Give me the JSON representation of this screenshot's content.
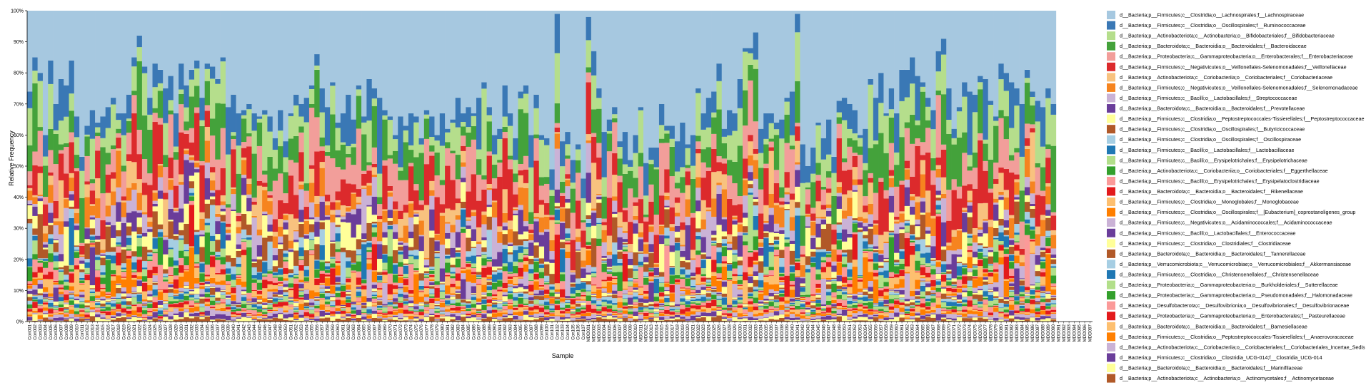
{
  "chart_data": {
    "type": "bar",
    "stacked": true,
    "xlabel": "Sample",
    "ylabel": "Relative Frequency",
    "ylim": [
      0,
      100
    ],
    "y_ticks": [
      "0%",
      "10%",
      "20%",
      "30%",
      "40%",
      "50%",
      "60%",
      "70%",
      "80%",
      "90%",
      "100%"
    ],
    "legend_position": "right",
    "categories": [
      "Con001",
      "Con002",
      "Con003",
      "Con004",
      "Con005",
      "Con006",
      "Con007",
      "Con008",
      "Con009",
      "Con010",
      "Con011",
      "Con012",
      "Con013",
      "Con014",
      "Con015",
      "Con016",
      "Con017",
      "Con018",
      "Con019",
      "Con020",
      "Con021",
      "Con022",
      "Con023",
      "Con024",
      "Con025",
      "Con026",
      "Con027",
      "Con028",
      "Con029",
      "Con030",
      "Con031",
      "Con032",
      "Con033",
      "Con034",
      "Con035",
      "Con036",
      "Con037",
      "Con038",
      "Con039",
      "Con040",
      "Con041",
      "Con042",
      "Con043",
      "Con044",
      "Con045",
      "Con046",
      "Con047",
      "Con048",
      "Con049",
      "Con050",
      "Con051",
      "Con052",
      "Con053",
      "Con054",
      "Con055",
      "Con056",
      "Con057",
      "Con058",
      "Con059",
      "Con060",
      "Con061",
      "Con062",
      "Con063",
      "Con064",
      "Con065",
      "Con066",
      "Con067",
      "Con068",
      "Con069",
      "Con070",
      "Con071",
      "Con072",
      "Con073",
      "Con074",
      "Con075",
      "Con076",
      "Con077",
      "Con078",
      "Con079",
      "Con080",
      "Con081",
      "Con082",
      "Con083",
      "Con084",
      "Con085",
      "Con086",
      "Con087",
      "Con088",
      "Con089",
      "Con090",
      "Con091",
      "Con092",
      "Con093",
      "Con094",
      "Con095",
      "Con096",
      "Con097",
      "Con098",
      "Con099",
      "Con100",
      "Con101",
      "Con102",
      "Con103",
      "Con104",
      "Con105",
      "Con106",
      "Con107",
      "MDD001",
      "MDD002",
      "MDD003",
      "MDD004",
      "MDD005",
      "MDD006",
      "MDD007",
      "MDD008",
      "MDD009",
      "MDD010",
      "MDD011",
      "MDD012",
      "MDD013",
      "MDD014",
      "MDD015",
      "MDD016",
      "MDD017",
      "MDD018",
      "MDD019",
      "MDD020",
      "MDD021",
      "MDD022",
      "MDD023",
      "MDD024",
      "MDD025",
      "MDD026",
      "MDD027",
      "MDD028",
      "MDD029",
      "MDD030",
      "MDD031",
      "MDD032",
      "MDD033",
      "MDD034",
      "MDD035",
      "MDD036",
      "MDD037",
      "MDD038",
      "MDD039",
      "MDD040",
      "MDD041",
      "MDD042",
      "MDD043",
      "MDD044",
      "MDD045",
      "MDD046",
      "MDD047",
      "MDD048",
      "MDD049",
      "MDD050",
      "MDD051",
      "MDD052",
      "MDD053",
      "MDD054",
      "MDD055",
      "MDD056",
      "MDD057",
      "MDD058",
      "MDD059",
      "MDD060",
      "MDD061",
      "MDD062",
      "MDD063",
      "MDD064",
      "MDD065",
      "MDD066",
      "MDD067",
      "MDD068",
      "MDD069",
      "MDD070",
      "MDD071",
      "MDD072",
      "MDD073",
      "MDD074",
      "MDD075",
      "MDD076",
      "MDD077",
      "MDD078",
      "MDD079",
      "MDD080",
      "MDD081",
      "MDD082",
      "MDD083",
      "MDD084",
      "MDD085",
      "MDD086",
      "MDD087",
      "MDD088",
      "MDD089",
      "MDD090",
      "MDD091",
      "MDD092",
      "MDD093",
      "MDD094",
      "MDD095",
      "MDD096",
      "MDD097"
    ],
    "top_taxon_percent": [
      26,
      15,
      20,
      40,
      16,
      30,
      22,
      24,
      16,
      34,
      47,
      37,
      32,
      36,
      34,
      31,
      28,
      33,
      33,
      27,
      15,
      8,
      18,
      28,
      17,
      19,
      25,
      21,
      33,
      17,
      24,
      19,
      16,
      28,
      17,
      18,
      22,
      15,
      31,
      27,
      33,
      32,
      30,
      33,
      34,
      32,
      34,
      41,
      32,
      42,
      33,
      27,
      30,
      28,
      24,
      14,
      25,
      31,
      23,
      36,
      33,
      27,
      35,
      24,
      34,
      22,
      25,
      28,
      32,
      34,
      40,
      34,
      37,
      33,
      34,
      41,
      32,
      34,
      40,
      33,
      38,
      35,
      28,
      33,
      31,
      33,
      28,
      23,
      31,
      40,
      38,
      24,
      33,
      41,
      26,
      24,
      40,
      27,
      40,
      41,
      51,
      1,
      42,
      39,
      48,
      43,
      54,
      2,
      13,
      25,
      39,
      35,
      31,
      42,
      39,
      48,
      40,
      31,
      49,
      44,
      44,
      30,
      37,
      37,
      42,
      36,
      43,
      40,
      25,
      33,
      28,
      26,
      17,
      38,
      32,
      33,
      22,
      12,
      12,
      7,
      38,
      33,
      33,
      36,
      35,
      28,
      26,
      1,
      43,
      50,
      44,
      36,
      41,
      35,
      47,
      29,
      28,
      30,
      32,
      40,
      38,
      22,
      28,
      20,
      33,
      25,
      33,
      19,
      19,
      15,
      21,
      23,
      28,
      32,
      13,
      9,
      25,
      38,
      31,
      23,
      26,
      27,
      21,
      22,
      29,
      34,
      17,
      20,
      23,
      25,
      30,
      19,
      26,
      29,
      31,
      25,
      30
    ],
    "series": [
      {
        "name": "d__Bacteria;p__Firmicutes;c__Clostridia;o__Lachnospirales;f__Lachnospiraceae",
        "color": "#a6c8e0"
      },
      {
        "name": "d__Bacteria;p__Firmicutes;c__Clostridia;o__Oscillospirales;f__Ruminococcaceae",
        "color": "#3a78b5"
      },
      {
        "name": "d__Bacteria;p__Actinobacteriota;c__Actinobacteria;o__Bifidobacteriales;f__Bifidobacteriaceae",
        "color": "#b5de8c"
      },
      {
        "name": "d__Bacteria;p__Bacteroidota;c__Bacteroidia;o__Bacteroidales;f__Bacteroidaceae",
        "color": "#44a23b"
      },
      {
        "name": "d__Bacteria;p__Proteobacteria;c__Gammaproteobacteria;o__Enterobacterales;f__Enterobacteriaceae",
        "color": "#f29e9a"
      },
      {
        "name": "d__Bacteria;p__Firmicutes;c__Negativicutes;o__Veillonellales-Selenomonadales;f__Veillonellaceae",
        "color": "#dc2a2c"
      },
      {
        "name": "d__Bacteria;p__Actinobacteriota;c__Coriobacteriia;o__Coriobacteriales;f__Coriobacteriaceae",
        "color": "#f8c27f"
      },
      {
        "name": "d__Bacteria;p__Firmicutes;c__Negativicutes;o__Veillonellales-Selenomonadales;f__Selenomonadaceae",
        "color": "#f6841f"
      },
      {
        "name": "d__Bacteria;p__Firmicutes;c__Bacilli;o__Lactobacillales;f__Streptococcaceae",
        "color": "#cab2d6"
      },
      {
        "name": "d__Bacteria;p__Bacteroidota;c__Bacteroidia;o__Bacteroidales;f__Prevotellaceae",
        "color": "#6a3d9a"
      },
      {
        "name": "d__Bacteria;p__Firmicutes;c__Clostridia;o__Peptostreptococcales-Tissierellales;f__Peptostreptococcaceae",
        "color": "#ffff99"
      },
      {
        "name": "d__Bacteria;p__Firmicutes;c__Clostridia;o__Oscillospirales;f__Butyricicoccaceae",
        "color": "#b15928"
      },
      {
        "name": "d__Bacteria;p__Firmicutes;c__Clostridia;o__Oscillospirales;f__Oscillospiraceae",
        "color": "#a6cee3"
      },
      {
        "name": "d__Bacteria;p__Firmicutes;c__Bacilli;o__Lactobacillales;f__Lactobacillaceae",
        "color": "#1f78b4"
      },
      {
        "name": "d__Bacteria;p__Firmicutes;c__Bacilli;o__Erysipelotrichales;f__Erysipelotrichaceae",
        "color": "#b2df8a"
      },
      {
        "name": "d__Bacteria;p__Actinobacteriota;c__Coriobacteriia;o__Coriobacteriales;f__Eggerthellaceae",
        "color": "#33a02c"
      },
      {
        "name": "d__Bacteria;p__Firmicutes;c__Bacilli;o__Erysipelotrichales;f__Erysipelatoclostridiaceae",
        "color": "#fb9a99"
      },
      {
        "name": "d__Bacteria;p__Bacteroidota;c__Bacteroidia;o__Bacteroidales;f__Rikenellaceae",
        "color": "#e31a1c"
      },
      {
        "name": "d__Bacteria;p__Firmicutes;c__Clostridia;o__Monoglobales;f__Monoglobaceae",
        "color": "#fdbf6f"
      },
      {
        "name": "d__Bacteria;p__Firmicutes;c__Clostridia;o__Oscillospirales;f__[Eubacterium]_coprostanoligenes_group",
        "color": "#ff7f00"
      },
      {
        "name": "d__Bacteria;p__Firmicutes;c__Negativicutes;o__Acidaminococcales;f__Acidaminococcaceae",
        "color": "#cab2d6"
      },
      {
        "name": "d__Bacteria;p__Firmicutes;c__Bacilli;o__Lactobacillales;f__Enterococcaceae",
        "color": "#6a3d9a"
      },
      {
        "name": "d__Bacteria;p__Firmicutes;c__Clostridia;o__Clostridiales;f__Clostridiaceae",
        "color": "#ffff99"
      },
      {
        "name": "d__Bacteria;p__Bacteroidota;c__Bacteroidia;o__Bacteroidales;f__Tannerellaceae",
        "color": "#b15928"
      },
      {
        "name": "d__Bacteria;p__Verrucomicrobiota;c__Verrucomicrobiae;o__Verrucomicrobiales;f__Akkermansiaceae",
        "color": "#a6cee3"
      },
      {
        "name": "d__Bacteria;p__Firmicutes;c__Clostridia;o__Christensenellales;f__Christensenellaceae",
        "color": "#1f78b4"
      },
      {
        "name": "d__Bacteria;p__Proteobacteria;c__Gammaproteobacteria;o__Burkholderiales;f__Sutterellaceae",
        "color": "#b2df8a"
      },
      {
        "name": "d__Bacteria;p__Proteobacteria;c__Gammaproteobacteria;o__Pseudomonadales;f__Halomonadaceae",
        "color": "#33a02c"
      },
      {
        "name": "d__Bacteria;p__Desulfobacterota;c__Desulfovibrionia;o__Desulfovibrionales;f__Desulfovibrionaceae",
        "color": "#fb9a99"
      },
      {
        "name": "d__Bacteria;p__Proteobacteria;c__Gammaproteobacteria;o__Enterobacterales;f__Pasteurellaceae",
        "color": "#e31a1c"
      },
      {
        "name": "d__Bacteria;p__Bacteroidota;c__Bacteroidia;o__Bacteroidales;f__Barnesiellaceae",
        "color": "#fdbf6f"
      },
      {
        "name": "d__Bacteria;p__Firmicutes;c__Clostridia;o__Peptostreptococcales-Tissierellales;f__Anaerovoracaceae",
        "color": "#ff7f00"
      },
      {
        "name": "d__Bacteria;p__Actinobacteriota;c__Coriobacteriia;o__Coriobacteriales;f__Coriobacteriales_Incertae_Sedis",
        "color": "#cab2d6"
      },
      {
        "name": "d__Bacteria;p__Firmicutes;c__Clostridia;o__Clostridia_UCG-014;f__Clostridia_UCG-014",
        "color": "#6a3d9a"
      },
      {
        "name": "d__Bacteria;p__Bacteroidota;c__Bacteroidia;o__Bacteroidales;f__Marinifilaceae",
        "color": "#ffff99"
      },
      {
        "name": "d__Bacteria;p__Actinobacteriota;c__Actinobacteria;o__Actinomycetales;f__Actinomycetaceae",
        "color": "#b15928"
      }
    ]
  }
}
